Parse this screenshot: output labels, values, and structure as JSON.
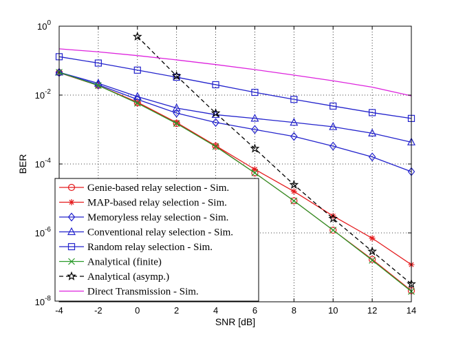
{
  "chart_data": {
    "type": "line",
    "xlabel": "SNR [dB]",
    "ylabel": "BER",
    "xlim": [
      -4,
      14
    ],
    "ylim": [
      1e-08,
      1
    ],
    "yscale": "log",
    "grid": true,
    "legend_position": "bottom-left",
    "x_ticks": [
      -4,
      -2,
      0,
      2,
      4,
      6,
      8,
      10,
      12,
      14
    ],
    "x_tick_labels": [
      "-4",
      "-2",
      "0",
      "2",
      "4",
      "6",
      "8",
      "10",
      "12",
      "14"
    ],
    "y_ticks": [
      1e-08,
      1e-06,
      0.0001,
      0.01,
      1
    ],
    "y_tick_labels": [
      {
        "base": "10",
        "exp": "-8"
      },
      {
        "base": "10",
        "exp": "-6"
      },
      {
        "base": "10",
        "exp": "-4"
      },
      {
        "base": "10",
        "exp": "-2"
      },
      {
        "base": "10",
        "exp": "0"
      }
    ],
    "series": [
      {
        "name": "Genie-based relay selection - Sim.",
        "color": "#e41a1c",
        "marker": "circle",
        "dash": "solid",
        "x": [
          -4,
          -2,
          0,
          2,
          4,
          6,
          8,
          10,
          12,
          14
        ],
        "y": [
          0.045,
          0.019,
          0.006,
          0.0015,
          0.00033,
          5.5e-05,
          8.5e-06,
          1.2e-06,
          1.7e-07,
          2.1e-08
        ]
      },
      {
        "name": "MAP-based relay selection - Sim.",
        "color": "#e41a1c",
        "marker": "asterisk",
        "dash": "solid",
        "x": [
          -4,
          -2,
          0,
          2,
          4,
          6,
          8,
          10,
          12,
          14
        ],
        "y": [
          0.045,
          0.019,
          0.0062,
          0.0016,
          0.00034,
          7e-05,
          1.6e-05,
          3.1e-06,
          7e-07,
          1.2e-07
        ]
      },
      {
        "name": "Memoryless relay selection - Sim.",
        "color": "#2222cc",
        "marker": "diamond",
        "dash": "solid",
        "x": [
          -4,
          -2,
          0,
          2,
          4,
          6,
          8,
          10,
          12,
          14
        ],
        "y": [
          0.045,
          0.02,
          0.0075,
          0.003,
          0.0016,
          0.001,
          0.00063,
          0.00033,
          0.00016,
          6e-05
        ]
      },
      {
        "name": "Conventional relay selection - Sim.",
        "color": "#2222cc",
        "marker": "triangle",
        "dash": "solid",
        "x": [
          -4,
          -2,
          0,
          2,
          4,
          6,
          8,
          10,
          12,
          14
        ],
        "y": [
          0.046,
          0.022,
          0.009,
          0.0042,
          0.0027,
          0.0021,
          0.0016,
          0.0012,
          0.00078,
          0.00043
        ]
      },
      {
        "name": "Random relay selection - Sim.",
        "color": "#2222cc",
        "marker": "square",
        "dash": "solid",
        "x": [
          -4,
          -2,
          0,
          2,
          4,
          6,
          8,
          10,
          12,
          14
        ],
        "y": [
          0.13,
          0.085,
          0.053,
          0.033,
          0.02,
          0.012,
          0.0075,
          0.0048,
          0.0031,
          0.0021
        ]
      },
      {
        "name": "Analytical (finite)",
        "color": "#2a9a2a",
        "marker": "x",
        "dash": "solid",
        "x": [
          -4,
          -2,
          0,
          2,
          4,
          6,
          8,
          10,
          12,
          14
        ],
        "y": [
          0.046,
          0.019,
          0.0058,
          0.0015,
          0.00032,
          5.5e-05,
          8.5e-06,
          1.2e-06,
          1.6e-07,
          2e-08
        ]
      },
      {
        "name": "Analytical (asymp.)",
        "color": "#000000",
        "marker": "star",
        "dash": "dashed",
        "x": [
          0,
          2,
          4,
          6,
          8,
          10,
          12,
          14
        ],
        "y": [
          0.5,
          0.036,
          0.003,
          0.00028,
          2.5e-05,
          2.6e-06,
          2.9e-07,
          3.3e-08
        ]
      },
      {
        "name": "Direct Transmission - Sim.",
        "color": "#dd22dd",
        "marker": "none",
        "dash": "solid",
        "x": [
          -4,
          -2,
          0,
          2,
          4,
          6,
          8,
          10,
          12,
          14
        ],
        "y": [
          0.22,
          0.18,
          0.14,
          0.105,
          0.077,
          0.055,
          0.038,
          0.026,
          0.017,
          0.0095
        ]
      }
    ]
  }
}
